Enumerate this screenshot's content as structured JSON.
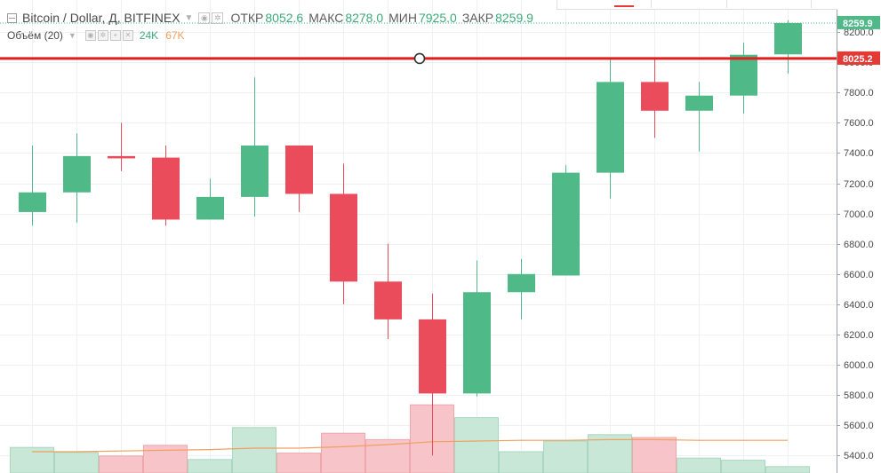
{
  "legend": {
    "title": "Bitcoin / Dollar, Д, BITFINEX",
    "open_label": "ОТКР",
    "open_value": "8052.6",
    "high_label": "МАКС",
    "high_value": "8278.0",
    "low_label": "МИН",
    "low_value": "7925.0",
    "close_label": "ЗАКР",
    "close_value": "8259.9"
  },
  "volume_legend": {
    "title": "Объём (20)",
    "volume_value": "24K",
    "ma_value": "67K"
  },
  "colors": {
    "up": "#4fba88",
    "down": "#ea4c5c",
    "vol_up": "#c8e7d7",
    "vol_down": "#f7c5c9",
    "ma_line": "#f0a060",
    "price_line": "#e01e1e",
    "grid": "#eef1f4",
    "label_green": "#4fba88",
    "label_red": "#e53935"
  },
  "chart_data": {
    "type": "candlestick",
    "ylim": [
      5290,
      8330
    ],
    "y_ticks": [
      5400,
      5600,
      5800,
      6000,
      6200,
      6400,
      6600,
      6800,
      7000,
      7200,
      7400,
      7600,
      7800,
      8000,
      8200
    ],
    "y_tick_labels": [
      "5400.0",
      "5600.0",
      "5800.0",
      "6000.0",
      "6200.0",
      "6400.0",
      "6600.0",
      "6800.0",
      "7000.0",
      "7200.0",
      "7400.0",
      "7600.0",
      "7800.0",
      "8000.0",
      "8200.0"
    ],
    "candles": [
      {
        "open": 7010,
        "high": 7450,
        "low": 6920,
        "close": 7140,
        "direction": "up"
      },
      {
        "open": 7140,
        "high": 7530,
        "low": 6940,
        "close": 7380,
        "direction": "up"
      },
      {
        "open": 7380,
        "high": 7600,
        "low": 7280,
        "close": 7365,
        "direction": "down"
      },
      {
        "open": 7370,
        "high": 7450,
        "low": 6920,
        "close": 6960,
        "direction": "down"
      },
      {
        "open": 6960,
        "high": 7230,
        "low": 6960,
        "close": 7110,
        "direction": "up"
      },
      {
        "open": 7110,
        "high": 7900,
        "low": 6980,
        "close": 7450,
        "direction": "up"
      },
      {
        "open": 7450,
        "high": 7450,
        "low": 7010,
        "close": 7130,
        "direction": "down"
      },
      {
        "open": 7130,
        "high": 7330,
        "low": 6400,
        "close": 6550,
        "direction": "down"
      },
      {
        "open": 6550,
        "high": 6800,
        "low": 6170,
        "close": 6300,
        "direction": "down"
      },
      {
        "open": 6300,
        "high": 6470,
        "low": 5400,
        "close": 5810,
        "direction": "down"
      },
      {
        "open": 5810,
        "high": 6690,
        "low": 5790,
        "close": 6480,
        "direction": "up"
      },
      {
        "open": 6480,
        "high": 6700,
        "low": 6300,
        "close": 6600,
        "direction": "up"
      },
      {
        "open": 6590,
        "high": 7320,
        "low": 6590,
        "close": 7270,
        "direction": "up"
      },
      {
        "open": 7270,
        "high": 8030,
        "low": 7100,
        "close": 7870,
        "direction": "up"
      },
      {
        "open": 7870,
        "high": 8030,
        "low": 7500,
        "close": 7680,
        "direction": "down"
      },
      {
        "open": 7680,
        "high": 7870,
        "low": 7410,
        "close": 7780,
        "direction": "up"
      },
      {
        "open": 7780,
        "high": 8130,
        "low": 7660,
        "close": 8050,
        "direction": "up"
      },
      {
        "open": 8052.6,
        "high": 8278.0,
        "low": 7925.0,
        "close": 8259.9,
        "direction": "up"
      }
    ],
    "volume": {
      "unit": "relative",
      "max": 100,
      "values": [
        36,
        29,
        24,
        39,
        19,
        64,
        28,
        56,
        47,
        96,
        78,
        30,
        45,
        54,
        50,
        21,
        18,
        9
      ],
      "directions": [
        "up",
        "up",
        "down",
        "down",
        "up",
        "up",
        "down",
        "down",
        "down",
        "down",
        "up",
        "up",
        "up",
        "up",
        "down",
        "up",
        "up",
        "up"
      ],
      "ma_values": [
        30,
        30,
        31,
        32,
        33,
        35,
        35,
        37,
        40,
        44,
        45,
        46,
        46,
        47,
        47,
        46,
        46,
        46
      ]
    },
    "price_line": {
      "value": 8025.2,
      "label": "8025.2"
    },
    "last_price": {
      "value": 8259.9,
      "label": "8259.9"
    },
    "grid": true
  }
}
